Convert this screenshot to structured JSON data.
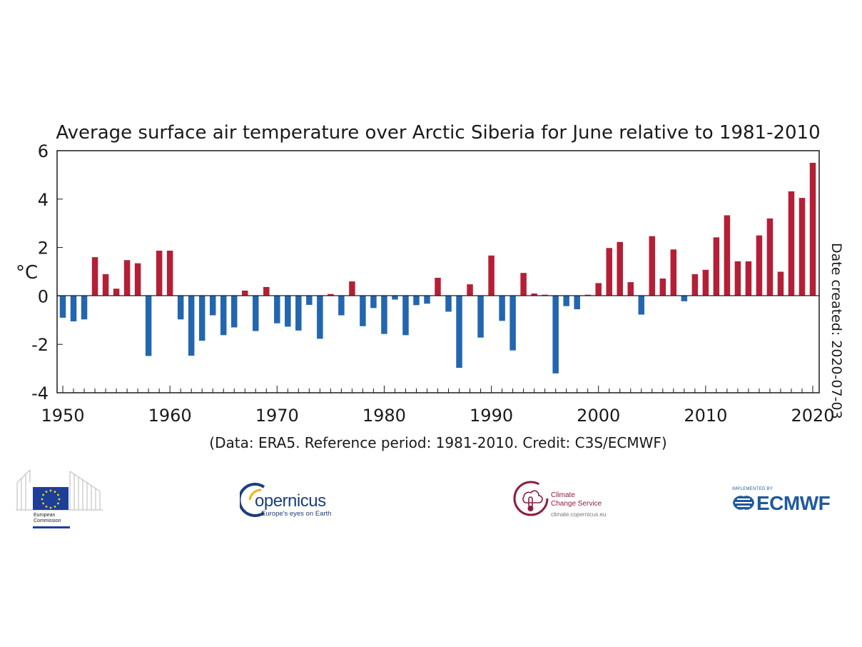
{
  "chart_data": {
    "type": "bar",
    "title": "Average surface air temperature over Arctic Siberia for June relative to 1981-2010",
    "ylabel": "°C",
    "xlabel": "",
    "ylim": [
      -4,
      6
    ],
    "yticks": [
      -4,
      -2,
      0,
      2,
      4,
      6
    ],
    "xlim": [
      1950,
      2020
    ],
    "xticks": [
      1950,
      1960,
      1970,
      1980,
      1990,
      2000,
      2010,
      2020
    ],
    "positive_color": "#b51f36",
    "negative_color": "#2366b0",
    "years": [
      1950,
      1951,
      1952,
      1953,
      1954,
      1955,
      1956,
      1957,
      1958,
      1959,
      1960,
      1961,
      1962,
      1963,
      1964,
      1965,
      1966,
      1967,
      1968,
      1969,
      1970,
      1971,
      1972,
      1973,
      1974,
      1975,
      1976,
      1977,
      1978,
      1979,
      1980,
      1981,
      1982,
      1983,
      1984,
      1985,
      1986,
      1987,
      1988,
      1989,
      1990,
      1991,
      1992,
      1993,
      1994,
      1995,
      1996,
      1997,
      1998,
      1999,
      2000,
      2001,
      2002,
      2003,
      2004,
      2005,
      2006,
      2007,
      2008,
      2009,
      2010,
      2011,
      2012,
      2013,
      2014,
      2015,
      2016,
      2017,
      2018,
      2019,
      2020
    ],
    "values": [
      -0.9,
      -1.05,
      -0.97,
      1.6,
      0.9,
      0.3,
      1.48,
      1.35,
      -2.48,
      1.87,
      1.87,
      -0.97,
      -2.47,
      -1.85,
      -0.8,
      -1.62,
      -1.3,
      0.22,
      -1.45,
      0.37,
      -1.13,
      -1.27,
      -1.43,
      -0.37,
      -1.77,
      0.08,
      -0.8,
      0.6,
      -1.25,
      -0.5,
      -1.57,
      -0.15,
      -1.62,
      -0.38,
      -0.32,
      0.75,
      -0.65,
      -2.97,
      0.48,
      -1.72,
      1.67,
      -1.03,
      -2.25,
      0.95,
      0.1,
      0.05,
      -3.2,
      -0.42,
      -0.55,
      0.05,
      0.53,
      1.98,
      2.23,
      0.57,
      -0.77,
      2.47,
      0.72,
      1.92,
      -0.22,
      0.9,
      1.08,
      2.42,
      3.33,
      1.43,
      1.43,
      2.5,
      3.2,
      1.0,
      4.32,
      4.05,
      5.5
    ],
    "side_note": "Date created: 2020-07-03",
    "credit": "(Data: ERA5.  Reference period: 1981-2010.  Credit: C3S/ECMWF)"
  },
  "logos": {
    "european_commission": "European Commission",
    "european_commission_line1": "European",
    "european_commission_line2": "Commission",
    "copernicus": "opernicus",
    "copernicus_tagline": "Europe's eyes on Earth",
    "c3s_line1": "Climate",
    "c3s_line2": "Change Service",
    "c3s_url": "climate.copernicus.eu",
    "ecmwf_implemented": "IMPLEMENTED BY",
    "ecmwf": "ECMWF",
    "eu_blue": "#1d3f9a",
    "eu_yellow": "#ffd100",
    "c3s_red": "#8f1d3d",
    "ecmwf_blue": "#1f5a9c"
  }
}
